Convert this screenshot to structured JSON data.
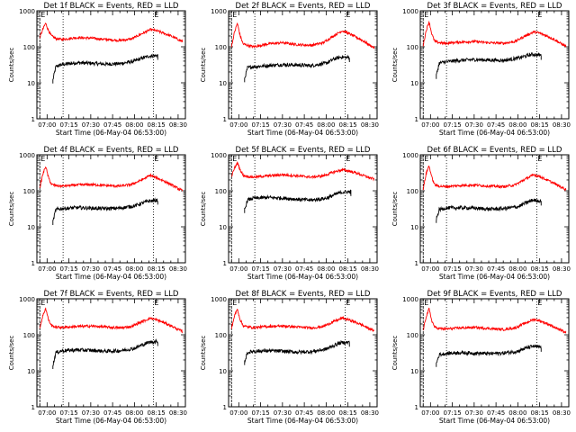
{
  "chart_data": {
    "type": "line",
    "layout": "3x3 grid",
    "colors": {
      "events": "#000000",
      "lld": "#ff0000",
      "axes": "#000000",
      "background": "#ffffff"
    },
    "yscale": "log",
    "ylim": [
      1,
      1000
    ],
    "xlim": [
      "06:53:00",
      "08:35:00"
    ],
    "ylabel": "Counts/sec",
    "xlabel": "Start Time (06-May-04 06:53:00)",
    "y_tick_labels": [
      "1",
      "10",
      "100",
      "1000"
    ],
    "x_tick_labels": [
      "07:00",
      "07:15",
      "07:30",
      "07:45",
      "08:00",
      "08:15",
      "08:30"
    ],
    "marker_label": "E",
    "charts": [
      {
        "title": "Det 1f BLACK = Events, RED = LLD",
        "lld_start": "06:55:00",
        "events_start": "07:04:00",
        "events_end": "08:16:30",
        "vlines": [
          "06:55:00",
          "07:11:00",
          "08:13:00"
        ],
        "series": [
          {
            "name": "Events",
            "color": "#000000",
            "x": [
              "07:04",
              "07:06",
              "07:10",
              "07:20",
              "07:30",
              "07:40",
              "07:50",
              "08:00",
              "08:05",
              "08:10",
              "08:16"
            ],
            "y": [
              12,
              28,
              32,
              36,
              35,
              33,
              34,
              40,
              48,
              55,
              58
            ]
          },
          {
            "name": "LLD",
            "color": "#ff0000",
            "x": [
              "06:55",
              "06:57",
              "06:59",
              "07:01",
              "07:03",
              "07:06",
              "07:10",
              "07:20",
              "07:30",
              "07:40",
              "07:50",
              "07:58",
              "08:05",
              "08:11",
              "08:15",
              "08:20",
              "08:25",
              "08:30",
              "08:33"
            ],
            "y": [
              180,
              300,
              450,
              280,
              200,
              170,
              160,
              180,
              175,
              160,
              150,
              165,
              230,
              300,
              280,
              240,
              200,
              160,
              140
            ]
          }
        ]
      },
      {
        "title": "Det 2f BLACK = Events, RED = LLD",
        "lld_start": "06:55:00",
        "events_start": "07:04:00",
        "events_end": "08:16:30",
        "vlines": [
          "06:55:00",
          "07:11:00",
          "08:13:00"
        ],
        "series": [
          {
            "name": "Events",
            "color": "#000000",
            "x": [
              "07:04",
              "07:06",
              "07:10",
              "07:20",
              "07:30",
              "07:40",
              "07:50",
              "08:00",
              "08:05",
              "08:10",
              "08:16"
            ],
            "y": [
              13,
              26,
              28,
              30,
              32,
              31,
              30,
              35,
              45,
              52,
              50
            ]
          },
          {
            "name": "LLD",
            "color": "#ff0000",
            "x": [
              "06:55",
              "06:57",
              "06:59",
              "07:01",
              "07:03",
              "07:06",
              "07:10",
              "07:20",
              "07:30",
              "07:40",
              "07:50",
              "07:58",
              "08:05",
              "08:11",
              "08:15",
              "08:20",
              "08:25",
              "08:30",
              "08:33"
            ],
            "y": [
              100,
              250,
              450,
              200,
              120,
              110,
              100,
              120,
              130,
              115,
              110,
              130,
              200,
              280,
              240,
              190,
              150,
              110,
              95
            ]
          }
        ]
      },
      {
        "title": "Det 3f BLACK = Events, RED = LLD",
        "lld_start": "06:55:00",
        "events_start": "07:04:00",
        "events_end": "08:16:30",
        "vlines": [
          "06:55:00",
          "07:11:00",
          "08:13:00"
        ],
        "series": [
          {
            "name": "Events",
            "color": "#000000",
            "x": [
              "07:04",
              "07:06",
              "07:10",
              "07:20",
              "07:30",
              "07:40",
              "07:50",
              "08:00",
              "08:05",
              "08:10",
              "08:16"
            ],
            "y": [
              16,
              35,
              38,
              42,
              44,
              43,
              42,
              48,
              55,
              62,
              58
            ]
          },
          {
            "name": "LLD",
            "color": "#ff0000",
            "x": [
              "06:55",
              "06:57",
              "06:59",
              "07:01",
              "07:03",
              "07:06",
              "07:10",
              "07:20",
              "07:30",
              "07:40",
              "07:50",
              "07:58",
              "08:05",
              "08:11",
              "08:15",
              "08:20",
              "08:25",
              "08:30",
              "08:33"
            ],
            "y": [
              110,
              280,
              500,
              220,
              140,
              130,
              125,
              135,
              140,
              130,
              125,
              140,
              200,
              260,
              240,
              200,
              160,
              120,
              105
            ]
          }
        ]
      },
      {
        "title": "Det 4f BLACK = Events, RED = LLD",
        "lld_start": "06:55:00",
        "events_start": "07:04:00",
        "events_end": "08:16:30",
        "vlines": [
          "06:55:00",
          "07:11:00",
          "08:13:00"
        ],
        "series": [
          {
            "name": "Events",
            "color": "#000000",
            "x": [
              "07:04",
              "07:06",
              "07:10",
              "07:20",
              "07:30",
              "07:40",
              "07:50",
              "08:00",
              "08:05",
              "08:10",
              "08:16"
            ],
            "y": [
              14,
              30,
              32,
              34,
              33,
              32,
              33,
              38,
              45,
              52,
              55
            ]
          },
          {
            "name": "LLD",
            "color": "#ff0000",
            "x": [
              "06:55",
              "06:57",
              "06:59",
              "07:01",
              "07:03",
              "07:06",
              "07:10",
              "07:20",
              "07:30",
              "07:40",
              "07:50",
              "07:58",
              "08:05",
              "08:11",
              "08:15",
              "08:20",
              "08:25",
              "08:30",
              "08:33"
            ],
            "y": [
              120,
              280,
              480,
              230,
              150,
              140,
              135,
              145,
              150,
              140,
              135,
              150,
              200,
              270,
              230,
              190,
              150,
              115,
              100
            ]
          }
        ]
      },
      {
        "title": "Det 5f BLACK = Events, RED = LLD",
        "lld_start": "06:55:00",
        "events_start": "07:04:00",
        "events_end": "08:17:00",
        "vlines": [
          "06:55:00",
          "07:11:00",
          "08:13:00"
        ],
        "series": [
          {
            "name": "Events",
            "color": "#000000",
            "x": [
              "07:04",
              "07:06",
              "07:10",
              "07:20",
              "07:30",
              "07:40",
              "07:50",
              "08:00",
              "08:05",
              "08:10",
              "08:17"
            ],
            "y": [
              30,
              55,
              62,
              65,
              63,
              58,
              55,
              62,
              75,
              90,
              95
            ]
          },
          {
            "name": "LLD",
            "color": "#ff0000",
            "x": [
              "06:55",
              "06:57",
              "06:59",
              "07:01",
              "07:03",
              "07:06",
              "07:10",
              "07:20",
              "07:30",
              "07:40",
              "07:50",
              "07:58",
              "08:05",
              "08:11",
              "08:15",
              "08:20",
              "08:25",
              "08:30",
              "08:33"
            ],
            "y": [
              250,
              420,
              600,
              380,
              270,
              250,
              240,
              260,
              280,
              260,
              240,
              260,
              330,
              380,
              360,
              320,
              270,
              230,
              210
            ]
          }
        ]
      },
      {
        "title": "Det 6f BLACK = Events, RED = LLD",
        "lld_start": "06:55:00",
        "events_start": "07:04:00",
        "events_end": "08:16:30",
        "vlines": [
          "06:55:00",
          "07:11:00",
          "08:13:00"
        ],
        "series": [
          {
            "name": "Events",
            "color": "#000000",
            "x": [
              "07:04",
              "07:06",
              "07:10",
              "07:20",
              "07:30",
              "07:40",
              "07:50",
              "08:00",
              "08:05",
              "08:10",
              "08:16"
            ],
            "y": [
              16,
              30,
              33,
              34,
              33,
              31,
              32,
              36,
              45,
              55,
              52
            ]
          },
          {
            "name": "LLD",
            "color": "#ff0000",
            "x": [
              "06:55",
              "06:57",
              "06:59",
              "07:01",
              "07:03",
              "07:06",
              "07:10",
              "07:20",
              "07:30",
              "07:40",
              "07:50",
              "07:58",
              "08:05",
              "08:11",
              "08:15",
              "08:20",
              "08:25",
              "08:30",
              "08:33"
            ],
            "y": [
              110,
              300,
              500,
              230,
              145,
              135,
              130,
              140,
              145,
              135,
              130,
              145,
              210,
              280,
              250,
              200,
              160,
              125,
              110
            ]
          }
        ]
      },
      {
        "title": "Det 7f BLACK = Events, RED = LLD",
        "lld_start": "06:55:00",
        "events_start": "07:04:00",
        "events_end": "08:16:30",
        "vlines": [
          "06:55:00",
          "07:11:00",
          "08:13:00"
        ],
        "series": [
          {
            "name": "Events",
            "color": "#000000",
            "x": [
              "07:04",
              "07:06",
              "07:10",
              "07:20",
              "07:30",
              "07:40",
              "07:50",
              "08:00",
              "08:05",
              "08:10",
              "08:16"
            ],
            "y": [
              14,
              32,
              36,
              38,
              37,
              35,
              36,
              42,
              52,
              62,
              65
            ]
          },
          {
            "name": "LLD",
            "color": "#ff0000",
            "x": [
              "06:55",
              "06:57",
              "06:59",
              "07:01",
              "07:03",
              "07:06",
              "07:10",
              "07:20",
              "07:30",
              "07:40",
              "07:50",
              "07:58",
              "08:05",
              "08:11",
              "08:15",
              "08:20",
              "08:25",
              "08:30",
              "08:33"
            ],
            "y": [
              150,
              330,
              550,
              260,
              180,
              165,
              160,
              170,
              175,
              165,
              155,
              170,
              230,
              290,
              260,
              220,
              180,
              140,
              125
            ]
          }
        ]
      },
      {
        "title": "Det 8f BLACK = Events, RED = LLD",
        "lld_start": "06:55:00",
        "events_start": "07:04:00",
        "events_end": "08:16:30",
        "vlines": [
          "06:55:00",
          "07:11:00",
          "08:13:00"
        ],
        "series": [
          {
            "name": "Events",
            "color": "#000000",
            "x": [
              "07:04",
              "07:06",
              "07:10",
              "07:20",
              "07:30",
              "07:40",
              "07:50",
              "08:00",
              "08:05",
              "08:10",
              "08:16"
            ],
            "y": [
              18,
              32,
              35,
              36,
              35,
              33,
              34,
              40,
              50,
              60,
              62
            ]
          },
          {
            "name": "LLD",
            "color": "#ff0000",
            "x": [
              "06:55",
              "06:57",
              "06:59",
              "07:01",
              "07:03",
              "07:06",
              "07:10",
              "07:20",
              "07:30",
              "07:40",
              "07:50",
              "07:58",
              "08:05",
              "08:11",
              "08:15",
              "08:20",
              "08:25",
              "08:30",
              "08:33"
            ],
            "y": [
              150,
              330,
              520,
              260,
              180,
              165,
              160,
              170,
              175,
              165,
              155,
              170,
              230,
              290,
              265,
              225,
              185,
              145,
              130
            ]
          }
        ]
      },
      {
        "title": "Det 9f BLACK = Events, RED = LLD",
        "lld_start": "06:55:00",
        "events_start": "07:04:00",
        "events_end": "08:16:30",
        "vlines": [
          "06:55:00",
          "07:11:00",
          "08:13:00"
        ],
        "series": [
          {
            "name": "Events",
            "color": "#000000",
            "x": [
              "07:04",
              "07:06",
              "07:10",
              "07:20",
              "07:30",
              "07:40",
              "07:50",
              "08:00",
              "08:05",
              "08:10",
              "08:16"
            ],
            "y": [
              16,
              28,
              30,
              32,
              31,
              30,
              31,
              35,
              42,
              48,
              45
            ]
          },
          {
            "name": "LLD",
            "color": "#ff0000",
            "x": [
              "06:55",
              "06:57",
              "06:59",
              "07:01",
              "07:03",
              "07:06",
              "07:10",
              "07:20",
              "07:30",
              "07:40",
              "07:50",
              "07:58",
              "08:05",
              "08:11",
              "08:15",
              "08:20",
              "08:25",
              "08:30",
              "08:33"
            ],
            "y": [
              130,
              320,
              520,
              240,
              160,
              150,
              145,
              155,
              160,
              150,
              140,
              155,
              210,
              270,
              245,
              205,
              165,
              130,
              115
            ]
          }
        ]
      }
    ]
  }
}
